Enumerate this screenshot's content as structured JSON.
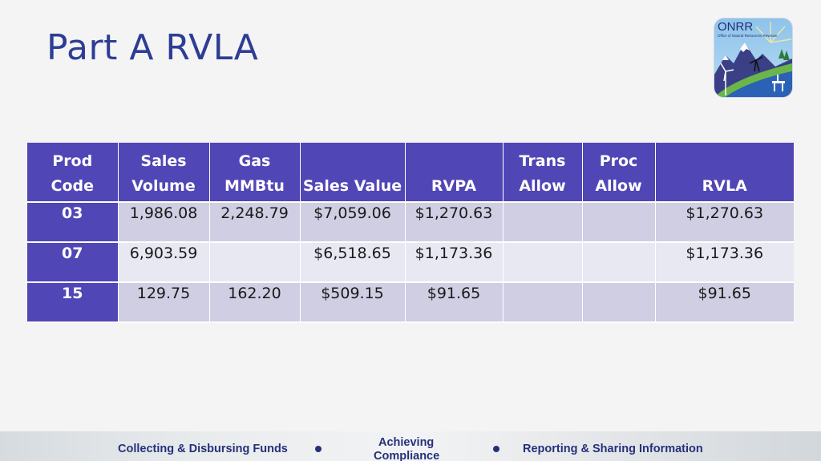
{
  "slide": {
    "title": "Part A RVLA"
  },
  "logo": {
    "acronym": "ONRR",
    "subtitle": "Office of Natural Resources Revenue"
  },
  "table": {
    "headers": [
      [
        "Prod",
        "Code"
      ],
      [
        "Sales",
        "Volume"
      ],
      [
        "Gas",
        "MMBtu"
      ],
      [
        "",
        "Sales Value"
      ],
      [
        "",
        "RVPA"
      ],
      [
        "Trans",
        "Allow"
      ],
      [
        "Proc",
        "Allow"
      ],
      [
        "",
        "RVLA"
      ]
    ],
    "rows": [
      [
        "03",
        "1,986.08",
        "2,248.79",
        "$7,059.06",
        "$1,270.63",
        "",
        "",
        "$1,270.63"
      ],
      [
        "07",
        "6,903.59",
        "",
        "$6,518.65",
        "$1,173.36",
        "",
        "",
        "$1,173.36"
      ],
      [
        "15",
        "129.75",
        "162.20",
        "$509.15",
        "$91.65",
        "",
        "",
        "$91.65"
      ]
    ]
  },
  "footer": {
    "left": "Collecting & Disbursing Funds",
    "middle_line1": "Achieving",
    "middle_line2": "Compliance",
    "right": "Reporting & Sharing Information"
  }
}
